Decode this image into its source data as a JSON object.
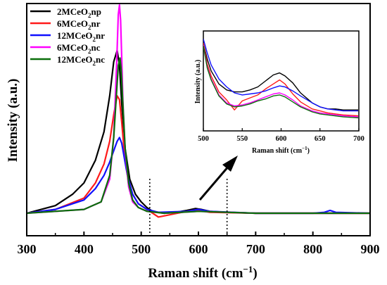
{
  "chart_data": [
    {
      "type": "line",
      "xlabel": "Raman shift (cm⁻¹)",
      "ylabel": "Intensity (a.u.)",
      "xlim": [
        300,
        900
      ],
      "xticks": [
        "300",
        "400",
        "500",
        "600",
        "700",
        "800",
        "900"
      ],
      "yticks_shown": false,
      "grid": false,
      "legend_position": "top-left",
      "series": [
        {
          "legend_base": "2MCeO",
          "legend_sub": "2",
          "legend_suffix": "np",
          "color": "#000000",
          "x": [
            300,
            350,
            380,
            400,
            420,
            435,
            445,
            452,
            458,
            462,
            466,
            472,
            480,
            490,
            500,
            510,
            520,
            540,
            560,
            580,
            595,
            605,
            620,
            650,
            700,
            800,
            900
          ],
          "y": [
            0.0,
            0.04,
            0.1,
            0.16,
            0.28,
            0.43,
            0.62,
            0.8,
            0.86,
            0.78,
            0.58,
            0.34,
            0.18,
            0.1,
            0.06,
            0.03,
            0.01,
            0.0,
            0.005,
            0.015,
            0.025,
            0.02,
            0.01,
            0.005,
            0.0,
            0.0,
            0.0
          ]
        },
        {
          "legend_base": "6MCeO",
          "legend_sub": "2",
          "legend_suffix": "nr",
          "color": "#ff1a1a",
          "x": [
            300,
            350,
            400,
            420,
            435,
            445,
            452,
            458,
            462,
            466,
            470,
            476,
            485,
            495,
            510,
            530,
            580,
            595,
            605,
            620,
            700,
            900
          ],
          "y": [
            0.0,
            0.02,
            0.08,
            0.16,
            0.26,
            0.38,
            0.52,
            0.62,
            0.6,
            0.48,
            0.34,
            0.2,
            0.1,
            0.05,
            0.02,
            -0.02,
            0.01,
            0.018,
            0.012,
            0.005,
            0.0,
            0.0
          ]
        },
        {
          "legend_base": "12MCeO",
          "legend_sub": "2",
          "legend_suffix": "nr",
          "color": "#1010ff",
          "x": [
            300,
            350,
            400,
            420,
            435,
            445,
            452,
            458,
            462,
            466,
            470,
            476,
            485,
            495,
            510,
            530,
            580,
            600,
            620,
            700,
            800,
            820,
            830,
            840,
            900
          ],
          "y": [
            0.0,
            0.02,
            0.07,
            0.13,
            0.2,
            0.27,
            0.33,
            0.38,
            0.4,
            0.37,
            0.3,
            0.2,
            0.1,
            0.05,
            0.02,
            0.005,
            0.01,
            0.02,
            0.01,
            0.0,
            0.0,
            0.005,
            0.015,
            0.005,
            0.0
          ]
        },
        {
          "legend_base": "6MCeO",
          "legend_sub": "2",
          "legend_suffix": "nc",
          "color": "#ff00ff",
          "x": [
            300,
            400,
            430,
            445,
            452,
            457,
            460,
            462,
            464,
            466,
            468,
            472,
            478,
            485,
            495,
            510,
            540,
            600,
            700,
            900
          ],
          "y": [
            0.0,
            0.02,
            0.06,
            0.18,
            0.4,
            0.78,
            1.05,
            1.1,
            1.02,
            0.82,
            0.6,
            0.32,
            0.14,
            0.06,
            0.03,
            0.01,
            0.0,
            0.01,
            0.0,
            0.0
          ]
        },
        {
          "legend_base": "12MCeO",
          "legend_sub": "2",
          "legend_suffix": "nc",
          "color": "#0a6e0a",
          "x": [
            300,
            400,
            430,
            445,
            452,
            457,
            460,
            463,
            465,
            468,
            472,
            478,
            485,
            495,
            510,
            540,
            600,
            700,
            900
          ],
          "y": [
            0.0,
            0.02,
            0.06,
            0.2,
            0.4,
            0.64,
            0.78,
            0.82,
            0.76,
            0.58,
            0.34,
            0.16,
            0.07,
            0.03,
            0.01,
            0.0,
            0.01,
            0.0,
            0.0
          ]
        }
      ],
      "markers": [
        {
          "type": "dotted-vline",
          "x": 515
        },
        {
          "type": "dotted-vline",
          "x": 650
        }
      ]
    },
    {
      "type": "line",
      "inset": true,
      "xlabel": "Raman shift (cm⁻¹)",
      "ylabel": "Intensity (a.u.)",
      "xlim": [
        500,
        700
      ],
      "ylim": [
        0,
        1
      ],
      "xticks": [
        "500",
        "550",
        "600",
        "650",
        "700"
      ],
      "grid": false,
      "series": [
        {
          "color": "#000000",
          "x": [
            500,
            505,
            510,
            520,
            530,
            540,
            550,
            560,
            570,
            580,
            590,
            598,
            605,
            615,
            625,
            640,
            650,
            660,
            670,
            680,
            700
          ],
          "y": [
            0.88,
            0.72,
            0.6,
            0.47,
            0.41,
            0.39,
            0.39,
            0.41,
            0.44,
            0.5,
            0.56,
            0.58,
            0.55,
            0.48,
            0.38,
            0.28,
            0.24,
            0.22,
            0.22,
            0.21,
            0.21
          ]
        },
        {
          "color": "#ff1a1a",
          "x": [
            500,
            505,
            510,
            520,
            530,
            540,
            550,
            560,
            570,
            580,
            590,
            598,
            605,
            615,
            625,
            640,
            650,
            660,
            670,
            680,
            700
          ],
          "y": [
            0.88,
            0.67,
            0.55,
            0.39,
            0.31,
            0.21,
            0.3,
            0.33,
            0.36,
            0.42,
            0.47,
            0.51,
            0.47,
            0.37,
            0.29,
            0.22,
            0.2,
            0.18,
            0.17,
            0.16,
            0.15
          ]
        },
        {
          "color": "#1010ff",
          "x": [
            500,
            505,
            510,
            520,
            530,
            540,
            550,
            560,
            570,
            580,
            590,
            598,
            605,
            615,
            625,
            640,
            650,
            660,
            670,
            680,
            700
          ],
          "y": [
            0.92,
            0.78,
            0.66,
            0.52,
            0.44,
            0.38,
            0.36,
            0.37,
            0.38,
            0.4,
            0.43,
            0.45,
            0.44,
            0.4,
            0.35,
            0.28,
            0.24,
            0.22,
            0.21,
            0.2,
            0.2
          ]
        },
        {
          "color": "#ff00ff",
          "x": [
            500,
            505,
            510,
            520,
            530,
            540,
            550,
            560,
            570,
            580,
            590,
            598,
            605,
            615,
            625,
            640,
            650,
            660,
            670,
            680,
            700
          ],
          "y": [
            0.86,
            0.64,
            0.52,
            0.36,
            0.28,
            0.25,
            0.26,
            0.28,
            0.31,
            0.34,
            0.37,
            0.38,
            0.36,
            0.31,
            0.25,
            0.2,
            0.18,
            0.17,
            0.16,
            0.15,
            0.14
          ]
        },
        {
          "color": "#0a6e0a",
          "x": [
            500,
            505,
            510,
            520,
            530,
            540,
            550,
            560,
            570,
            580,
            590,
            598,
            605,
            615,
            625,
            640,
            650,
            660,
            670,
            680,
            700
          ],
          "y": [
            0.85,
            0.63,
            0.51,
            0.35,
            0.27,
            0.24,
            0.25,
            0.27,
            0.3,
            0.32,
            0.35,
            0.36,
            0.34,
            0.29,
            0.24,
            0.19,
            0.17,
            0.16,
            0.15,
            0.14,
            0.13
          ]
        }
      ]
    }
  ]
}
